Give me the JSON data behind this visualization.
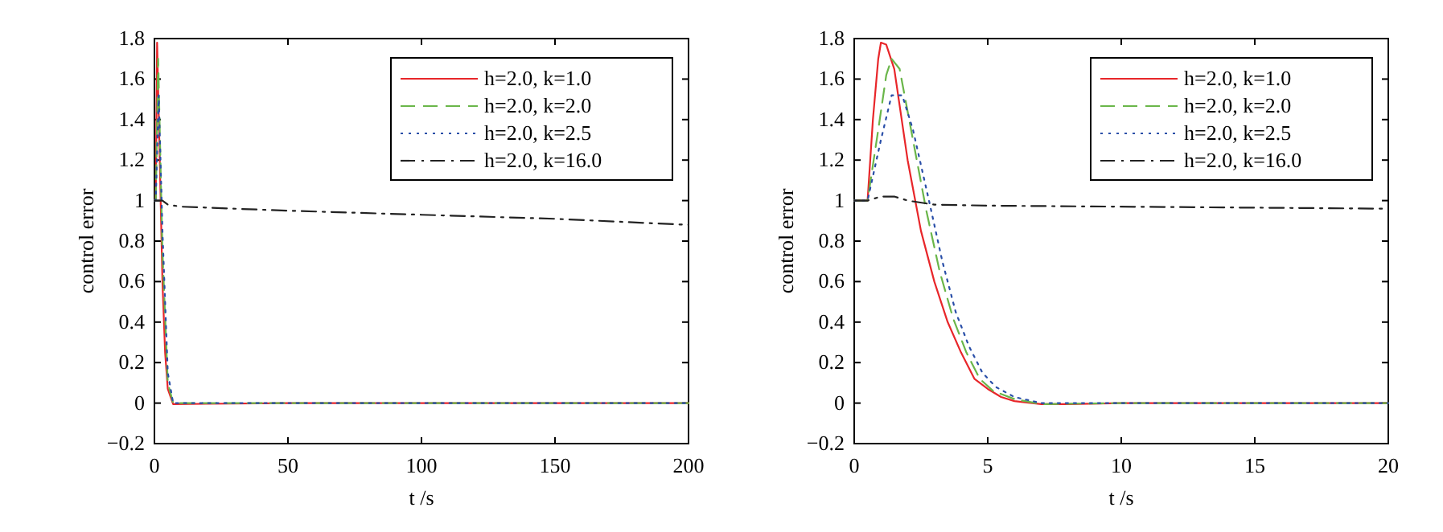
{
  "chart_data": [
    {
      "type": "line",
      "xlabel": "t /s",
      "ylabel": "control error",
      "xlim": [
        0,
        200
      ],
      "ylim": [
        -0.2,
        1.8
      ],
      "xticks": [
        0,
        50,
        100,
        150,
        200
      ],
      "yticks": [
        -0.2,
        0,
        0.2,
        0.4,
        0.6,
        0.8,
        1,
        1.2,
        1.4,
        1.6,
        1.8
      ],
      "legend": "top right",
      "grid": false,
      "series": [
        {
          "name": "h=2.0, k=1.0",
          "color": "#e8262a",
          "line_style": "solid",
          "x": [
            0,
            0.5,
            1,
            2,
            3,
            4,
            5,
            7,
            50,
            100,
            150,
            200
          ],
          "values": [
            1,
            1,
            1.78,
            1.2,
            0.6,
            0.25,
            0.07,
            -0.005,
            0,
            0,
            0,
            0
          ]
        },
        {
          "name": "h=2.0, k=2.0",
          "color": "#6ab64a",
          "line_style": "dashed",
          "x": [
            0,
            0.5,
            1.4,
            3,
            5,
            7,
            50,
            100,
            150,
            200
          ],
          "values": [
            1,
            1,
            1.7,
            0.75,
            0.1,
            0,
            0,
            0,
            0,
            0
          ]
        },
        {
          "name": "h=2.0, k=2.5",
          "color": "#2a4fa8",
          "line_style": "dotted",
          "x": [
            0,
            0.5,
            1.6,
            3,
            5,
            7,
            50,
            100,
            150,
            200
          ],
          "values": [
            1,
            1,
            1.52,
            0.85,
            0.15,
            0,
            0,
            0,
            0,
            0
          ]
        },
        {
          "name": "h=2.0, k=16.0",
          "color": "#222222",
          "line_style": "dashdot",
          "x": [
            0,
            3,
            5,
            10,
            50,
            100,
            150,
            200
          ],
          "values": [
            1,
            1,
            0.98,
            0.97,
            0.95,
            0.93,
            0.91,
            0.88
          ]
        }
      ]
    },
    {
      "type": "line",
      "xlabel": "t /s",
      "ylabel": "control error",
      "xlim": [
        0,
        20
      ],
      "ylim": [
        -0.2,
        1.8
      ],
      "xticks": [
        0,
        5,
        10,
        15,
        20
      ],
      "yticks": [
        -0.2,
        0,
        0.2,
        0.4,
        0.6,
        0.8,
        1,
        1.2,
        1.4,
        1.6,
        1.8
      ],
      "legend": "top right",
      "grid": false,
      "series": [
        {
          "name": "h=2.0, k=1.0",
          "color": "#e8262a",
          "line_style": "solid",
          "x": [
            0,
            0.5,
            0.7,
            0.9,
            1.0,
            1.2,
            1.5,
            2.0,
            2.5,
            3,
            3.5,
            4,
            4.5,
            5,
            5.5,
            6,
            7,
            8,
            10,
            15,
            20
          ],
          "values": [
            1,
            1,
            1.4,
            1.7,
            1.78,
            1.77,
            1.65,
            1.2,
            0.85,
            0.6,
            0.4,
            0.25,
            0.12,
            0.07,
            0.03,
            0.01,
            -0.005,
            -0.005,
            0,
            0,
            0
          ]
        },
        {
          "name": "h=2.0, k=2.0",
          "color": "#6ab64a",
          "line_style": "dashed",
          "x": [
            0,
            0.5,
            0.9,
            1.2,
            1.4,
            1.7,
            2.2,
            2.7,
            3.2,
            3.7,
            4.2,
            4.7,
            5.2,
            6,
            7,
            10,
            20
          ],
          "values": [
            1,
            1,
            1.35,
            1.62,
            1.7,
            1.65,
            1.3,
            0.95,
            0.65,
            0.42,
            0.25,
            0.12,
            0.06,
            0.02,
            -0.005,
            0,
            0
          ]
        },
        {
          "name": "h=2.0, k=2.5",
          "color": "#2a4fa8",
          "line_style": "dotted",
          "x": [
            0,
            0.5,
            1.0,
            1.4,
            1.8,
            2.2,
            2.8,
            3.3,
            3.8,
            4.3,
            4.8,
            5.3,
            6,
            7,
            10,
            20
          ],
          "values": [
            1,
            1,
            1.3,
            1.52,
            1.52,
            1.35,
            1.0,
            0.7,
            0.45,
            0.28,
            0.15,
            0.08,
            0.03,
            0,
            0,
            0
          ]
        },
        {
          "name": "h=2.0, k=16.0",
          "color": "#222222",
          "line_style": "dashdot",
          "x": [
            0,
            0.5,
            1,
            1.5,
            2,
            3,
            5,
            10,
            15,
            20
          ],
          "values": [
            1,
            1,
            1.02,
            1.02,
            1.0,
            0.98,
            0.975,
            0.97,
            0.965,
            0.96
          ]
        }
      ]
    }
  ]
}
